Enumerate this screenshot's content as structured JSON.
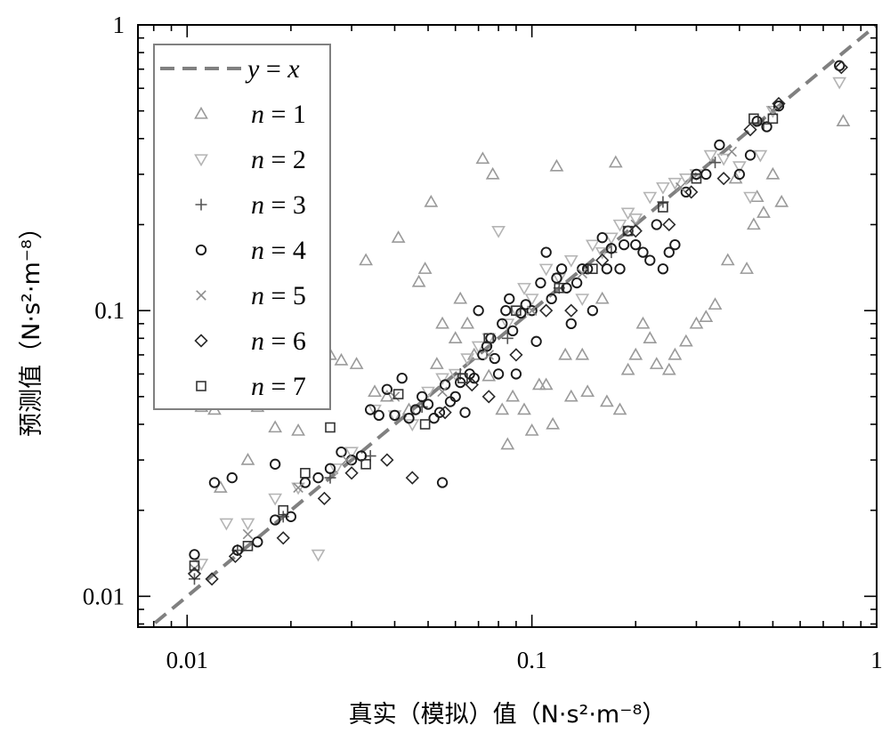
{
  "chart_data": {
    "type": "scatter",
    "title": "",
    "xlabel": "真实（模拟）值（N·s²·m⁻⁸）",
    "ylabel": "预测值（N·s²·m⁻⁸）",
    "x_scale": "log",
    "y_scale": "log",
    "xlim": [
      0.0072,
      1.0
    ],
    "ylim": [
      0.0078,
      1.0
    ],
    "x_ticks": [
      {
        "value": 0.01,
        "label": "0.01"
      },
      {
        "value": 0.1,
        "label": "0.1"
      },
      {
        "value": 1,
        "label": "1"
      }
    ],
    "y_ticks": [
      {
        "value": 0.01,
        "label": "0.01"
      },
      {
        "value": 0.1,
        "label": "0.1"
      },
      {
        "value": 1,
        "label": "1"
      }
    ],
    "grid": false,
    "legend_position": "top-left",
    "reference_line": {
      "label_var": "y",
      "label_eq": " = ",
      "label_rhs": "x",
      "color": "#808080",
      "style": "dashed"
    },
    "marker_styles": {
      "n1": {
        "marker": "triangle-up",
        "color": "#9a9a9a"
      },
      "n2": {
        "marker": "triangle-down",
        "color": "#b4b4b4"
      },
      "n3": {
        "marker": "plus",
        "color": "#555555"
      },
      "n4": {
        "marker": "circle",
        "color": "#1a1a1a"
      },
      "n5": {
        "marker": "x",
        "color": "#8c8c8c"
      },
      "n6": {
        "marker": "diamond",
        "color": "#2a2a2a"
      },
      "n7": {
        "marker": "square",
        "color": "#333333"
      }
    },
    "series": [
      {
        "name": "n = 1",
        "key": "n1",
        "var": "n",
        "eq": " = ",
        "num": "1",
        "points": [
          [
            0.011,
            0.046
          ],
          [
            0.012,
            0.045
          ],
          [
            0.0125,
            0.024
          ],
          [
            0.015,
            0.03
          ],
          [
            0.016,
            0.046
          ],
          [
            0.018,
            0.039
          ],
          [
            0.021,
            0.038
          ],
          [
            0.023,
            0.062
          ],
          [
            0.026,
            0.07
          ],
          [
            0.028,
            0.067
          ],
          [
            0.031,
            0.065
          ],
          [
            0.033,
            0.15
          ],
          [
            0.035,
            0.052
          ],
          [
            0.038,
            0.05
          ],
          [
            0.041,
            0.18
          ],
          [
            0.044,
            0.045
          ],
          [
            0.047,
            0.126
          ],
          [
            0.049,
            0.14
          ],
          [
            0.051,
            0.24
          ],
          [
            0.053,
            0.065
          ],
          [
            0.055,
            0.09
          ],
          [
            0.06,
            0.08
          ],
          [
            0.062,
            0.11
          ],
          [
            0.065,
            0.09
          ],
          [
            0.068,
            0.07
          ],
          [
            0.072,
            0.34
          ],
          [
            0.075,
            0.059
          ],
          [
            0.077,
            0.3
          ],
          [
            0.082,
            0.045
          ],
          [
            0.085,
            0.034
          ],
          [
            0.088,
            0.05
          ],
          [
            0.095,
            0.045
          ],
          [
            0.1,
            0.038
          ],
          [
            0.105,
            0.055
          ],
          [
            0.11,
            0.055
          ],
          [
            0.115,
            0.04
          ],
          [
            0.118,
            0.32
          ],
          [
            0.125,
            0.07
          ],
          [
            0.13,
            0.05
          ],
          [
            0.14,
            0.07
          ],
          [
            0.145,
            0.052
          ],
          [
            0.16,
            0.11
          ],
          [
            0.165,
            0.048
          ],
          [
            0.175,
            0.33
          ],
          [
            0.18,
            0.045
          ],
          [
            0.19,
            0.062
          ],
          [
            0.2,
            0.07
          ],
          [
            0.21,
            0.09
          ],
          [
            0.22,
            0.08
          ],
          [
            0.23,
            0.065
          ],
          [
            0.25,
            0.062
          ],
          [
            0.26,
            0.07
          ],
          [
            0.28,
            0.078
          ],
          [
            0.3,
            0.09
          ],
          [
            0.32,
            0.095
          ],
          [
            0.34,
            0.105
          ],
          [
            0.37,
            0.15
          ],
          [
            0.39,
            0.29
          ],
          [
            0.42,
            0.14
          ],
          [
            0.44,
            0.2
          ],
          [
            0.45,
            0.25
          ],
          [
            0.47,
            0.22
          ],
          [
            0.5,
            0.3
          ],
          [
            0.53,
            0.24
          ],
          [
            0.8,
            0.46
          ]
        ]
      },
      {
        "name": "n = 2",
        "key": "n2",
        "var": "n",
        "eq": " = ",
        "num": "2",
        "points": [
          [
            0.011,
            0.013
          ],
          [
            0.013,
            0.018
          ],
          [
            0.015,
            0.018
          ],
          [
            0.018,
            0.022
          ],
          [
            0.021,
            0.024
          ],
          [
            0.024,
            0.014
          ],
          [
            0.027,
            0.028
          ],
          [
            0.03,
            0.032
          ],
          [
            0.035,
            0.045
          ],
          [
            0.04,
            0.043
          ],
          [
            0.045,
            0.04
          ],
          [
            0.05,
            0.052
          ],
          [
            0.055,
            0.058
          ],
          [
            0.06,
            0.06
          ],
          [
            0.065,
            0.068
          ],
          [
            0.07,
            0.075
          ],
          [
            0.075,
            0.08
          ],
          [
            0.08,
            0.19
          ],
          [
            0.085,
            0.09
          ],
          [
            0.09,
            0.1
          ],
          [
            0.095,
            0.12
          ],
          [
            0.1,
            0.11
          ],
          [
            0.11,
            0.14
          ],
          [
            0.12,
            0.13
          ],
          [
            0.13,
            0.15
          ],
          [
            0.14,
            0.11
          ],
          [
            0.15,
            0.17
          ],
          [
            0.16,
            0.16
          ],
          [
            0.17,
            0.18
          ],
          [
            0.18,
            0.2
          ],
          [
            0.19,
            0.22
          ],
          [
            0.2,
            0.21
          ],
          [
            0.22,
            0.25
          ],
          [
            0.24,
            0.27
          ],
          [
            0.26,
            0.28
          ],
          [
            0.28,
            0.29
          ],
          [
            0.3,
            0.3
          ],
          [
            0.33,
            0.35
          ],
          [
            0.36,
            0.34
          ],
          [
            0.4,
            0.32
          ],
          [
            0.43,
            0.25
          ],
          [
            0.46,
            0.35
          ],
          [
            0.5,
            0.5
          ],
          [
            0.78,
            0.63
          ]
        ]
      },
      {
        "name": "n = 3",
        "key": "n3",
        "var": "n",
        "eq": " = ",
        "num": "3",
        "points": [
          [
            0.0105,
            0.0115
          ],
          [
            0.014,
            0.0145
          ],
          [
            0.019,
            0.019
          ],
          [
            0.026,
            0.026
          ],
          [
            0.034,
            0.031
          ],
          [
            0.048,
            0.046
          ],
          [
            0.062,
            0.06
          ],
          [
            0.085,
            0.08
          ],
          [
            0.12,
            0.12
          ],
          [
            0.17,
            0.16
          ],
          [
            0.24,
            0.24
          ],
          [
            0.34,
            0.33
          ],
          [
            0.47,
            0.45
          ]
        ]
      },
      {
        "name": "n = 4",
        "key": "n4",
        "var": "n",
        "eq": " = ",
        "num": "4",
        "points": [
          [
            0.0105,
            0.014
          ],
          [
            0.012,
            0.025
          ],
          [
            0.0135,
            0.026
          ],
          [
            0.014,
            0.0145
          ],
          [
            0.016,
            0.0155
          ],
          [
            0.018,
            0.0185
          ],
          [
            0.018,
            0.029
          ],
          [
            0.02,
            0.019
          ],
          [
            0.022,
            0.025
          ],
          [
            0.024,
            0.026
          ],
          [
            0.026,
            0.028
          ],
          [
            0.028,
            0.032
          ],
          [
            0.03,
            0.03
          ],
          [
            0.032,
            0.031
          ],
          [
            0.034,
            0.045
          ],
          [
            0.036,
            0.043
          ],
          [
            0.038,
            0.053
          ],
          [
            0.04,
            0.043
          ],
          [
            0.042,
            0.058
          ],
          [
            0.044,
            0.042
          ],
          [
            0.046,
            0.045
          ],
          [
            0.048,
            0.05
          ],
          [
            0.05,
            0.047
          ],
          [
            0.052,
            0.042
          ],
          [
            0.054,
            0.044
          ],
          [
            0.055,
            0.025
          ],
          [
            0.056,
            0.055
          ],
          [
            0.058,
            0.048
          ],
          [
            0.06,
            0.05
          ],
          [
            0.062,
            0.056
          ],
          [
            0.064,
            0.044
          ],
          [
            0.066,
            0.06
          ],
          [
            0.068,
            0.058
          ],
          [
            0.07,
            0.1
          ],
          [
            0.072,
            0.07
          ],
          [
            0.074,
            0.075
          ],
          [
            0.076,
            0.08
          ],
          [
            0.078,
            0.068
          ],
          [
            0.08,
            0.06
          ],
          [
            0.082,
            0.09
          ],
          [
            0.084,
            0.1
          ],
          [
            0.086,
            0.11
          ],
          [
            0.088,
            0.085
          ],
          [
            0.09,
            0.06
          ],
          [
            0.093,
            0.098
          ],
          [
            0.096,
            0.105
          ],
          [
            0.1,
            0.1
          ],
          [
            0.103,
            0.078
          ],
          [
            0.106,
            0.125
          ],
          [
            0.11,
            0.16
          ],
          [
            0.114,
            0.11
          ],
          [
            0.118,
            0.13
          ],
          [
            0.122,
            0.14
          ],
          [
            0.126,
            0.12
          ],
          [
            0.13,
            0.09
          ],
          [
            0.135,
            0.125
          ],
          [
            0.14,
            0.14
          ],
          [
            0.145,
            0.14
          ],
          [
            0.15,
            0.1
          ],
          [
            0.16,
            0.18
          ],
          [
            0.165,
            0.14
          ],
          [
            0.17,
            0.165
          ],
          [
            0.18,
            0.14
          ],
          [
            0.185,
            0.17
          ],
          [
            0.19,
            0.19
          ],
          [
            0.2,
            0.17
          ],
          [
            0.21,
            0.16
          ],
          [
            0.22,
            0.15
          ],
          [
            0.23,
            0.2
          ],
          [
            0.24,
            0.14
          ],
          [
            0.25,
            0.16
          ],
          [
            0.26,
            0.17
          ],
          [
            0.28,
            0.26
          ],
          [
            0.3,
            0.3
          ],
          [
            0.32,
            0.3
          ],
          [
            0.35,
            0.38
          ],
          [
            0.4,
            0.3
          ],
          [
            0.43,
            0.35
          ],
          [
            0.45,
            0.46
          ],
          [
            0.48,
            0.44
          ],
          [
            0.52,
            0.52
          ],
          [
            0.78,
            0.72
          ]
        ]
      },
      {
        "name": "n = 5",
        "key": "n5",
        "var": "n",
        "eq": " = ",
        "num": "5",
        "points": [
          [
            0.0105,
            0.0125
          ],
          [
            0.015,
            0.0165
          ],
          [
            0.021,
            0.024
          ],
          [
            0.029,
            0.03
          ],
          [
            0.04,
            0.05
          ],
          [
            0.055,
            0.052
          ],
          [
            0.075,
            0.07
          ],
          [
            0.1,
            0.1
          ],
          [
            0.14,
            0.135
          ],
          [
            0.2,
            0.2
          ],
          [
            0.27,
            0.27
          ],
          [
            0.38,
            0.36
          ],
          [
            0.5,
            0.5
          ]
        ]
      },
      {
        "name": "n = 6",
        "key": "n6",
        "var": "n",
        "eq": " = ",
        "num": "6",
        "points": [
          [
            0.0105,
            0.012
          ],
          [
            0.0118,
            0.0115
          ],
          [
            0.0138,
            0.0138
          ],
          [
            0.019,
            0.016
          ],
          [
            0.025,
            0.022
          ],
          [
            0.03,
            0.027
          ],
          [
            0.038,
            0.03
          ],
          [
            0.045,
            0.026
          ],
          [
            0.056,
            0.044
          ],
          [
            0.067,
            0.055
          ],
          [
            0.075,
            0.05
          ],
          [
            0.09,
            0.07
          ],
          [
            0.11,
            0.1
          ],
          [
            0.13,
            0.1
          ],
          [
            0.16,
            0.15
          ],
          [
            0.2,
            0.19
          ],
          [
            0.25,
            0.2
          ],
          [
            0.29,
            0.26
          ],
          [
            0.36,
            0.29
          ],
          [
            0.43,
            0.43
          ],
          [
            0.52,
            0.53
          ],
          [
            0.79,
            0.71
          ]
        ]
      },
      {
        "name": "n = 7",
        "key": "n7",
        "var": "n",
        "eq": " = ",
        "num": "7",
        "points": [
          [
            0.0105,
            0.0128
          ],
          [
            0.015,
            0.015
          ],
          [
            0.019,
            0.02
          ],
          [
            0.022,
            0.027
          ],
          [
            0.026,
            0.039
          ],
          [
            0.033,
            0.029
          ],
          [
            0.041,
            0.051
          ],
          [
            0.049,
            0.04
          ],
          [
            0.063,
            0.058
          ],
          [
            0.075,
            0.08
          ],
          [
            0.09,
            0.1
          ],
          [
            0.12,
            0.12
          ],
          [
            0.15,
            0.14
          ],
          [
            0.19,
            0.19
          ],
          [
            0.24,
            0.23
          ],
          [
            0.3,
            0.29
          ],
          [
            0.44,
            0.47
          ],
          [
            0.5,
            0.47
          ]
        ]
      }
    ]
  }
}
